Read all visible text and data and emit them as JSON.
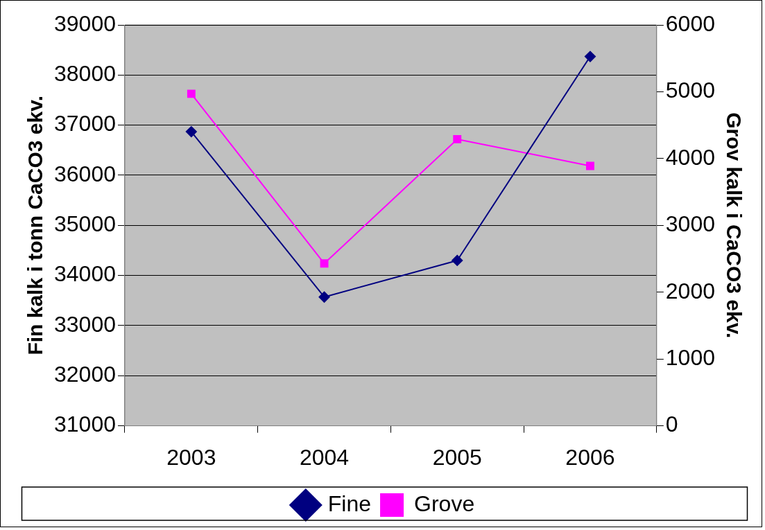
{
  "chart_data": {
    "type": "line",
    "ylabel": "Fin kalk i tonn CaCO3 ekv.",
    "y2label": "Grov kalk i CaCO3 ekv.",
    "categories": [
      "2003",
      "2004",
      "2005",
      "2006"
    ],
    "series": [
      {
        "name": "Fine",
        "color": "#000080",
        "marker": "diamond",
        "values": [
          36870,
          33570,
          34300,
          38370
        ]
      },
      {
        "name": "Grove",
        "color": "#ff00ff",
        "marker": "square",
        "axis": "y2",
        "values": [
          4970,
          2430,
          4290,
          3890
        ]
      }
    ],
    "ylim": [
      31000,
      39000
    ],
    "yticks": [
      31000,
      32000,
      33000,
      34000,
      35000,
      36000,
      37000,
      38000,
      39000
    ],
    "y2lim": [
      0,
      6000
    ],
    "y2ticks": [
      0,
      1000,
      2000,
      3000,
      4000,
      5000,
      6000
    ],
    "grid": "y",
    "legend": "bottom",
    "line_style": "solid"
  }
}
